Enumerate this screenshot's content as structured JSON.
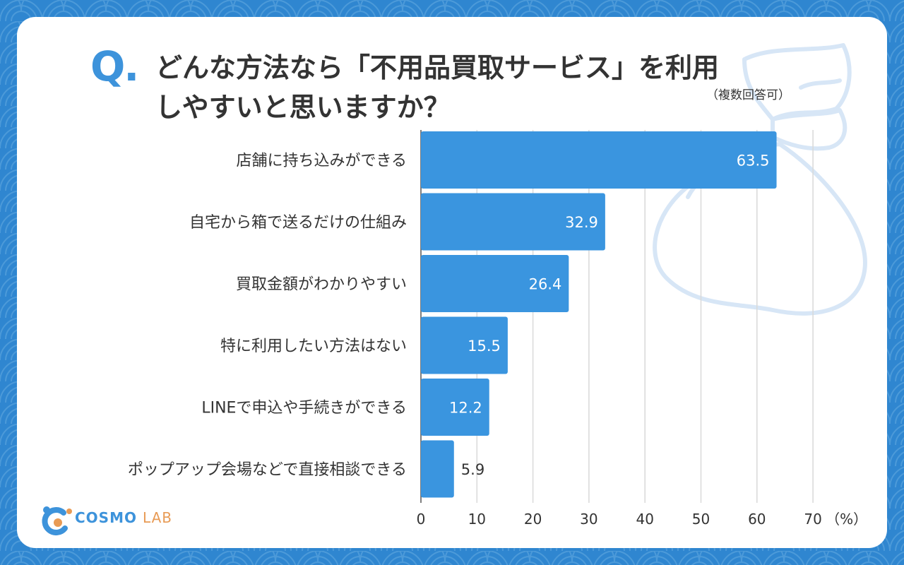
{
  "title": {
    "q_mark": "Q.",
    "line1": "どんな方法なら「不用品買取サービス」を利用",
    "line2": "しやすいと思いますか？",
    "note": "（複数回答可）"
  },
  "logo": {
    "part1": "COSMO",
    "part2": "LAB"
  },
  "colors": {
    "background": "#2f86d0",
    "bar": "#3a95df",
    "accent": "#3d93db",
    "text": "#333333"
  },
  "chart_data": {
    "type": "bar",
    "orientation": "horizontal",
    "categories": [
      "店舗に持ち込みができる",
      "自宅から箱で送るだけの仕組み",
      "買取金額がわかりやすい",
      "特に利用したい方法はない",
      "LINEで申込や手続きができる",
      "ポップアップ会場などで直接相談できる"
    ],
    "values": [
      63.5,
      32.9,
      26.4,
      15.5,
      12.2,
      5.9
    ],
    "value_labels": [
      "63.5",
      "32.9",
      "26.4",
      "15.5",
      "12.2",
      "5.9"
    ],
    "xticks": [
      0,
      10,
      20,
      30,
      40,
      50,
      60,
      70
    ],
    "xtick_labels": [
      "0",
      "10",
      "20",
      "30",
      "40",
      "50",
      "60",
      "70"
    ],
    "unit_label": "（%）",
    "xlim": [
      0,
      70
    ],
    "grid": true
  }
}
